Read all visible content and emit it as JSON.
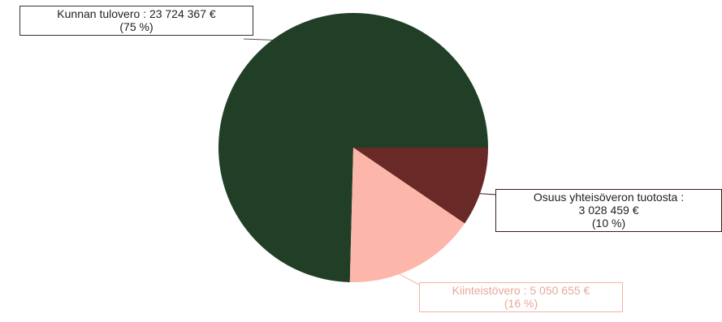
{
  "chart_data": {
    "type": "pie",
    "slices": [
      {
        "label_name": "Kunnan tulovero",
        "label_value": "23 724 367 €",
        "label_pct": "(75 %)",
        "value": 23724367,
        "color": "#213f26"
      },
      {
        "label_name": "Osuus yhteisöveron tuotosta :",
        "label_value": "3 028 459 €",
        "label_pct": "(10 %)",
        "value": 3028459,
        "color": "#692a27"
      },
      {
        "label_name": "Kiinteistövero",
        "label_value": "5 050 655 €",
        "label_pct": "(16 %)",
        "value": 5050655,
        "color": "#fdb6aa"
      }
    ],
    "label_style": "callouts-with-leader-lines",
    "start": "3-o'clock",
    "direction": "clockwise for small slices, main slice sweeps counterclockwise"
  }
}
